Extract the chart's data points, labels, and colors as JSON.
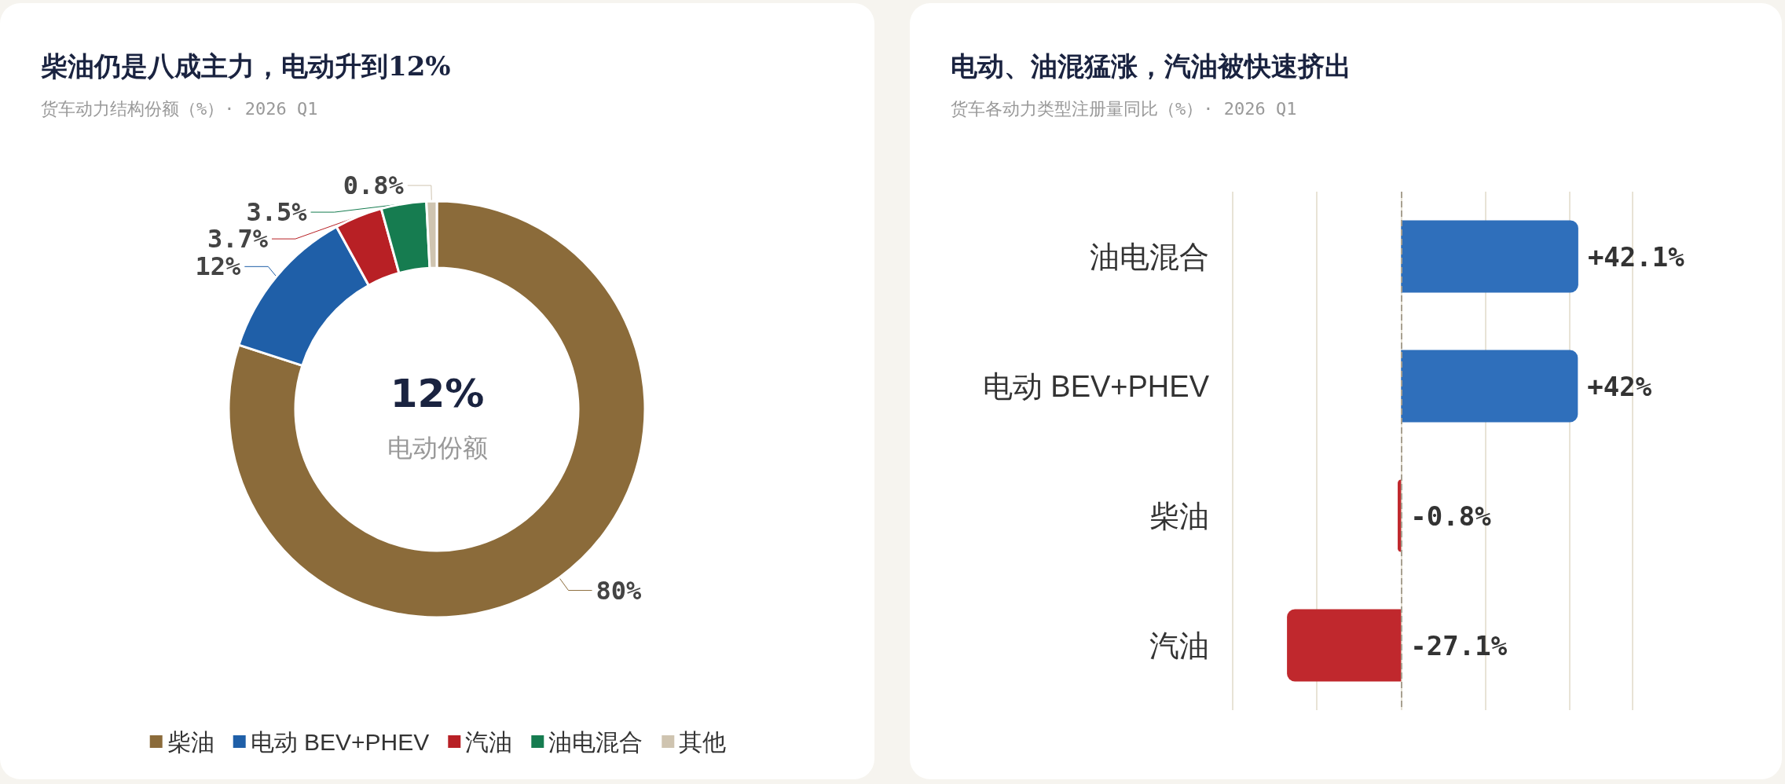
{
  "chart_data": [
    {
      "type": "donut",
      "title": "柴油仍是八成主力，电动升到12%",
      "subtitle": "货车动力结构份额（%）· 2026 Q1",
      "categories": [
        "柴油",
        "电动 BEV+PHEV",
        "汽油",
        "油电混合",
        "其他"
      ],
      "values": [
        80,
        12,
        3.7,
        3.5,
        0.8
      ],
      "colors": [
        "#8b6b3a",
        "#1f5fa8",
        "#b82025",
        "#167c50",
        "#cfc4b0"
      ],
      "value_labels": [
        "80%",
        "12%",
        "3.7%",
        "3.5%",
        "0.8%"
      ],
      "annotations": [
        "12%",
        "电动份额"
      ],
      "legend": "bottom"
    },
    {
      "type": "bar",
      "orientation": "horizontal",
      "title": "电动、油混猛涨，汽油被快速挤出",
      "subtitle": "货车各动力类型注册量同比（%）· 2026 Q1",
      "categories": [
        "油电混合",
        "电动 BEV+PHEV",
        "柴油",
        "汽油"
      ],
      "values": [
        42.1,
        42,
        -0.8,
        -27.1
      ],
      "colors": [
        "#2f6fbb",
        "#2f6fbb",
        "#c0282d",
        "#c0282d"
      ],
      "value_labels": [
        "+42.1%",
        "+42%",
        "-0.8%",
        "-27.1%"
      ],
      "xlim": [
        -40,
        55
      ],
      "xticks": [
        {
          "value": -40,
          "label": null
        },
        {
          "value": -20,
          "label": null
        },
        {
          "value": 0,
          "label": null
        },
        {
          "value": 20,
          "label": null
        },
        {
          "value": 40,
          "label": null
        },
        {
          "value": 55,
          "label": null
        }
      ],
      "tick_labels": "y",
      "grid": "x",
      "ref_lines": [
        {
          "axis": "x",
          "value": 0,
          "color": "#a8a090",
          "line_style": "dashed"
        }
      ],
      "legend": false
    }
  ]
}
